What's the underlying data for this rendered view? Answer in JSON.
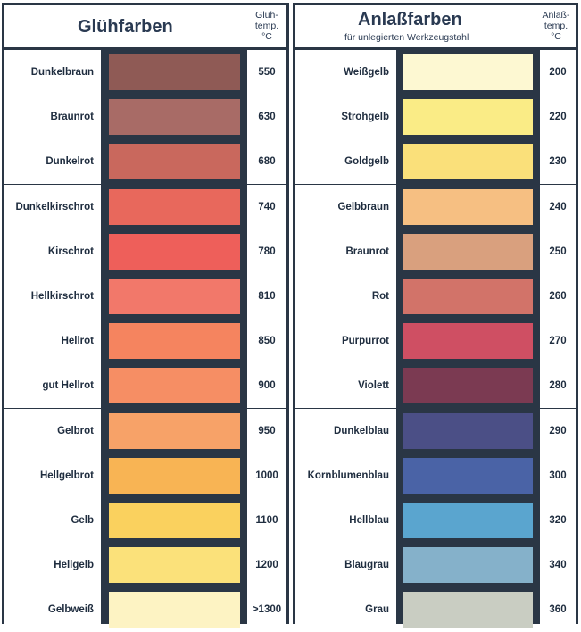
{
  "left": {
    "title": "Glühfarben",
    "temp_header": "Glüh-\ntemp.\n°C",
    "rows": [
      {
        "name": "Dunkelbraun",
        "temp": "550",
        "color": "#8f5a55"
      },
      {
        "name": "Braunrot",
        "temp": "630",
        "color": "#a86b66"
      },
      {
        "name": "Dunkelrot",
        "temp": "680",
        "color": "#c9685d"
      },
      {
        "name": "Dunkelkirschrot",
        "temp": "740",
        "color": "#e8685c"
      },
      {
        "name": "Kirschrot",
        "temp": "780",
        "color": "#ee5f5a"
      },
      {
        "name": "Hellkirschrot",
        "temp": "810",
        "color": "#f2786a"
      },
      {
        "name": "Hellrot",
        "temp": "850",
        "color": "#f5845f"
      },
      {
        "name": "gut Hellrot",
        "temp": "900",
        "color": "#f68e64"
      },
      {
        "name": "Gelbrot",
        "temp": "950",
        "color": "#f7a268"
      },
      {
        "name": "Hellgelbrot",
        "temp": "1000",
        "color": "#f8b454"
      },
      {
        "name": "Gelb",
        "temp": "1100",
        "color": "#fad15e"
      },
      {
        "name": "Hellgelb",
        "temp": "1200",
        "color": "#fbe17a"
      },
      {
        "name": "Gelbweiß",
        "temp": ">1300",
        "color": "#fdf3c3"
      }
    ]
  },
  "right": {
    "title": "Anlaßfarben",
    "subtitle": "für unlegierten Werkzeugstahl",
    "temp_header": "Anlaß-\ntemp.\n°C",
    "rows": [
      {
        "name": "Weißgelb",
        "temp": "200",
        "color": "#fdf8d2"
      },
      {
        "name": "Strohgelb",
        "temp": "220",
        "color": "#faec86"
      },
      {
        "name": "Goldgelb",
        "temp": "230",
        "color": "#fae07a"
      },
      {
        "name": "Gelbbraun",
        "temp": "240",
        "color": "#f6bf82"
      },
      {
        "name": "Braunrot",
        "temp": "250",
        "color": "#d9a07e"
      },
      {
        "name": "Rot",
        "temp": "260",
        "color": "#d27369"
      },
      {
        "name": "Purpurrot",
        "temp": "270",
        "color": "#cf4f63"
      },
      {
        "name": "Violett",
        "temp": "280",
        "color": "#7b3a52"
      },
      {
        "name": "Dunkelblau",
        "temp": "290",
        "color": "#4b4f86"
      },
      {
        "name": "Kornblumenblau",
        "temp": "300",
        "color": "#4a63a6"
      },
      {
        "name": "Hellblau",
        "temp": "320",
        "color": "#5aa5cf"
      },
      {
        "name": "Blaugrau",
        "temp": "340",
        "color": "#85b1ca"
      },
      {
        "name": "Grau",
        "temp": "360",
        "color": "#c9cdc2"
      }
    ]
  }
}
